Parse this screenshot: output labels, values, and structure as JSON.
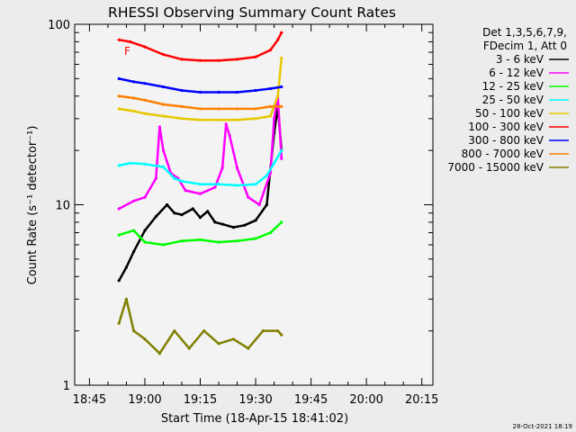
{
  "chart_data": {
    "type": "line",
    "title": "RHESSI Observing Summary Count Rates",
    "xlabel": "Start Time (18-Apr-15 18:41:02)",
    "ylabel": "Count Rate (s⁻¹ detector⁻¹)",
    "yscale": "log",
    "ylim": [
      1,
      100
    ],
    "xlim": [
      "18:41",
      "20:18"
    ],
    "xtick_labels": [
      "18:45",
      "19:00",
      "19:15",
      "19:30",
      "19:45",
      "20:00",
      "20:15"
    ],
    "ytick_labels": [
      "1",
      "10",
      "100"
    ],
    "legend_header": [
      "Det 1,3,5,6,7,9,",
      "FDecim 1, Att 0"
    ],
    "legend_position": "right",
    "footer_timestamp": "28-Oct-2021 18:19",
    "flag_label": "F",
    "grid": false,
    "series": [
      {
        "name": "3 - 6 keV",
        "color": "#000000",
        "x": [
          "18:53",
          "18:55",
          "18:57",
          "19:00",
          "19:03",
          "19:06",
          "19:08",
          "19:10",
          "19:13",
          "19:15",
          "19:17",
          "19:19",
          "19:21",
          "19:24",
          "19:27",
          "19:30",
          "19:33",
          "19:35",
          "19:36",
          "19:37"
        ],
        "y": [
          3.8,
          4.5,
          5.5,
          7.2,
          8.6,
          10,
          9,
          8.8,
          9.5,
          8.5,
          9.2,
          8,
          7.8,
          7.5,
          7.7,
          8.2,
          10,
          25,
          35,
          20
        ]
      },
      {
        "name": "6 - 12 keV",
        "color": "#ff00ff",
        "x": [
          "18:53",
          "18:57",
          "19:00",
          "19:03",
          "19:04",
          "19:05",
          "19:07",
          "19:09",
          "19:11",
          "19:15",
          "19:19",
          "19:21",
          "19:22",
          "19:23",
          "19:25",
          "19:28",
          "19:31",
          "19:34",
          "19:35",
          "19:36",
          "19:37"
        ],
        "y": [
          9.5,
          10.5,
          11,
          14,
          27,
          20,
          15,
          14,
          12,
          11.5,
          12.5,
          16,
          28,
          24,
          16,
          11,
          10,
          15,
          30,
          40,
          18
        ]
      },
      {
        "name": "12 - 25 keV",
        "color": "#00ff00",
        "x": [
          "18:53",
          "18:57",
          "19:00",
          "19:05",
          "19:10",
          "19:15",
          "19:20",
          "19:25",
          "19:30",
          "19:34",
          "19:37"
        ],
        "y": [
          6.8,
          7.2,
          6.2,
          6,
          6.3,
          6.4,
          6.2,
          6.3,
          6.5,
          7,
          8
        ]
      },
      {
        "name": "25 - 50 keV",
        "color": "#00ffff",
        "x": [
          "18:53",
          "18:56",
          "19:00",
          "19:05",
          "19:08",
          "19:10",
          "19:15",
          "19:20",
          "19:25",
          "19:30",
          "19:33",
          "19:35",
          "19:37"
        ],
        "y": [
          16.5,
          17,
          16.8,
          16.2,
          14,
          13.5,
          13,
          13,
          12.8,
          13,
          14.5,
          17,
          20
        ]
      },
      {
        "name": "50 - 100 keV",
        "color": "#e6c800",
        "x": [
          "18:53",
          "18:57",
          "19:00",
          "19:05",
          "19:10",
          "19:15",
          "19:20",
          "19:25",
          "19:30",
          "19:34",
          "19:36",
          "19:37"
        ],
        "y": [
          34,
          33,
          32,
          31,
          30,
          29.5,
          29.5,
          29.5,
          30,
          31,
          40,
          65
        ]
      },
      {
        "name": "100 - 300 keV",
        "color": "#ff0000",
        "x": [
          "18:53",
          "18:56",
          "19:00",
          "19:05",
          "19:10",
          "19:15",
          "19:20",
          "19:25",
          "19:30",
          "19:34",
          "19:36",
          "19:37"
        ],
        "y": [
          82,
          80,
          75,
          68,
          64,
          63,
          63,
          64,
          66,
          72,
          82,
          90
        ]
      },
      {
        "name": "300 - 800 keV",
        "color": "#0000ff",
        "x": [
          "18:53",
          "18:57",
          "19:00",
          "19:05",
          "19:10",
          "19:15",
          "19:20",
          "19:25",
          "19:30",
          "19:34",
          "19:37"
        ],
        "y": [
          50,
          48,
          47,
          45,
          43,
          42,
          42,
          42,
          43,
          44,
          45
        ]
      },
      {
        "name": "800 - 7000 keV",
        "color": "#ff8000",
        "x": [
          "18:53",
          "18:57",
          "19:00",
          "19:05",
          "19:10",
          "19:15",
          "19:20",
          "19:25",
          "19:30",
          "19:34",
          "19:37"
        ],
        "y": [
          40,
          39,
          38,
          36,
          35,
          34,
          34,
          34,
          34,
          35,
          35
        ]
      },
      {
        "name": "7000 - 15000 keV",
        "color": "#808000",
        "x": [
          "18:53",
          "18:55",
          "18:57",
          "19:00",
          "19:04",
          "19:08",
          "19:12",
          "19:16",
          "19:20",
          "19:24",
          "19:28",
          "19:32",
          "19:36",
          "19:37"
        ],
        "y": [
          2.2,
          3,
          2,
          1.8,
          1.5,
          2,
          1.6,
          2,
          1.7,
          1.8,
          1.6,
          2,
          2,
          1.9
        ]
      }
    ]
  }
}
